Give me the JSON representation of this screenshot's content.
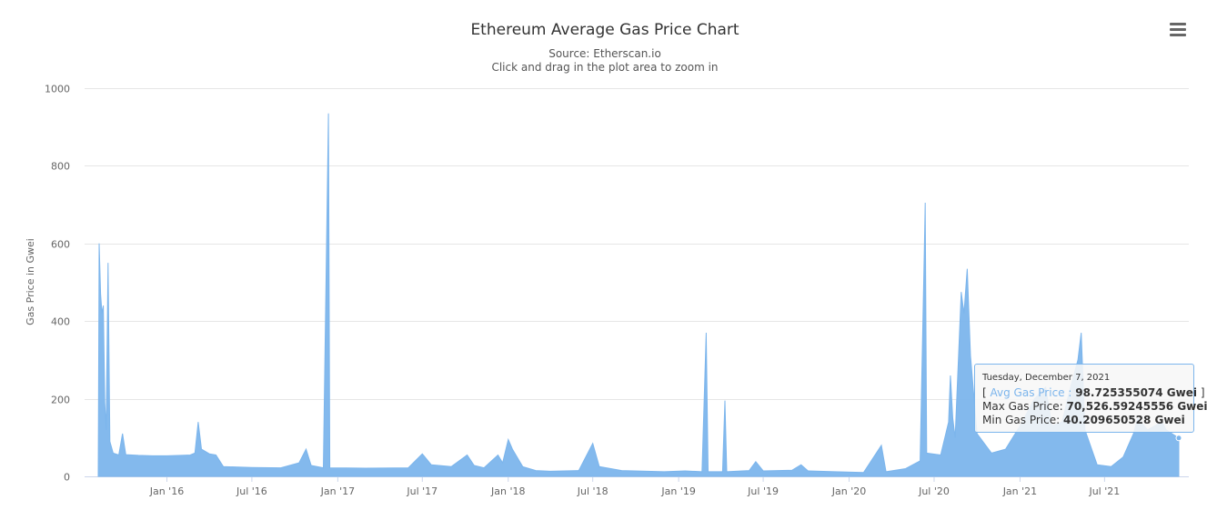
{
  "menu": {
    "icon": "hamburger-menu-icon"
  },
  "tooltip": {
    "date": "Tuesday, December 7, 2021",
    "open_bracket": "[",
    "close_bracket": "]",
    "series_label": "Avg Gas Price",
    "series_sep": " : ",
    "avg_value": "98.725355074 Gwei",
    "max_label": "Max Gas Price: ",
    "max_value": "70,526.59245556 Gwei",
    "min_label": "Min Gas Price: ",
    "min_value": "40.209650528 Gwei"
  },
  "colors": {
    "series": "#7cb5ec",
    "tooltip_border": "#7cb5ec",
    "grid": "#e6e6e6"
  },
  "chart_data": {
    "type": "area",
    "title": "Ethereum Average Gas Price Chart",
    "subtitle": "Source: Etherscan.io",
    "subtitle2": "Click and drag in the plot area to zoom in",
    "ylabel": "Gas Price in Gwei",
    "xlabel": "",
    "ylim": [
      0,
      1000
    ],
    "yticks": [
      0,
      200,
      400,
      600,
      800,
      1000
    ],
    "xlim": [
      "2015-08-07",
      "2021-12-07"
    ],
    "xticks": [
      {
        "date": "2016-01-01",
        "label": "Jan '16"
      },
      {
        "date": "2016-07-01",
        "label": "Jul '16"
      },
      {
        "date": "2017-01-01",
        "label": "Jan '17"
      },
      {
        "date": "2017-07-01",
        "label": "Jul '17"
      },
      {
        "date": "2018-01-01",
        "label": "Jan '18"
      },
      {
        "date": "2018-07-01",
        "label": "Jul '18"
      },
      {
        "date": "2019-01-01",
        "label": "Jan '19"
      },
      {
        "date": "2019-07-01",
        "label": "Jul '19"
      },
      {
        "date": "2020-01-01",
        "label": "Jan '20"
      },
      {
        "date": "2020-07-01",
        "label": "Jul '20"
      },
      {
        "date": "2021-01-01",
        "label": "Jan '21"
      },
      {
        "date": "2021-07-01",
        "label": "Jul '21"
      }
    ],
    "series": [
      {
        "name": "Avg Gas Price",
        "unit": "Gwei",
        "points": [
          [
            "2015-08-07",
            0
          ],
          [
            "2015-08-09",
            600
          ],
          [
            "2015-08-12",
            470
          ],
          [
            "2015-08-15",
            420
          ],
          [
            "2015-08-18",
            440
          ],
          [
            "2015-08-21",
            190
          ],
          [
            "2015-08-24",
            120
          ],
          [
            "2015-08-28",
            550
          ],
          [
            "2015-09-01",
            90
          ],
          [
            "2015-09-08",
            60
          ],
          [
            "2015-09-20",
            55
          ],
          [
            "2015-09-28",
            110
          ],
          [
            "2015-10-05",
            56
          ],
          [
            "2015-11-01",
            54
          ],
          [
            "2015-12-01",
            53
          ],
          [
            "2016-01-01",
            53
          ],
          [
            "2016-02-01",
            54
          ],
          [
            "2016-02-20",
            55
          ],
          [
            "2016-03-01",
            60
          ],
          [
            "2016-03-08",
            140
          ],
          [
            "2016-03-15",
            70
          ],
          [
            "2016-04-01",
            58
          ],
          [
            "2016-04-15",
            55
          ],
          [
            "2016-05-01",
            25
          ],
          [
            "2016-07-01",
            23
          ],
          [
            "2016-09-01",
            22
          ],
          [
            "2016-10-10",
            35
          ],
          [
            "2016-10-25",
            70
          ],
          [
            "2016-11-05",
            28
          ],
          [
            "2016-12-01",
            22
          ],
          [
            "2016-12-12",
            935
          ],
          [
            "2016-12-15",
            22
          ],
          [
            "2017-03-01",
            21
          ],
          [
            "2017-06-01",
            22
          ],
          [
            "2017-07-01",
            58
          ],
          [
            "2017-07-20",
            30
          ],
          [
            "2017-09-01",
            25
          ],
          [
            "2017-10-05",
            55
          ],
          [
            "2017-10-20",
            28
          ],
          [
            "2017-11-10",
            22
          ],
          [
            "2017-12-10",
            55
          ],
          [
            "2017-12-20",
            35
          ],
          [
            "2018-01-01",
            95
          ],
          [
            "2018-01-10",
            70
          ],
          [
            "2018-02-01",
            25
          ],
          [
            "2018-03-01",
            15
          ],
          [
            "2018-04-01",
            13
          ],
          [
            "2018-06-01",
            15
          ],
          [
            "2018-07-01",
            85
          ],
          [
            "2018-07-15",
            25
          ],
          [
            "2018-09-01",
            15
          ],
          [
            "2018-12-01",
            12
          ],
          [
            "2019-01-15",
            14
          ],
          [
            "2019-02-20",
            12
          ],
          [
            "2019-03-01",
            370
          ],
          [
            "2019-03-05",
            12
          ],
          [
            "2019-04-05",
            12
          ],
          [
            "2019-04-10",
            195
          ],
          [
            "2019-04-14",
            12
          ],
          [
            "2019-06-01",
            15
          ],
          [
            "2019-06-15",
            38
          ],
          [
            "2019-07-01",
            14
          ],
          [
            "2019-09-01",
            16
          ],
          [
            "2019-09-20",
            30
          ],
          [
            "2019-10-05",
            14
          ],
          [
            "2019-12-01",
            12
          ],
          [
            "2020-02-01",
            10
          ],
          [
            "2020-03-10",
            80
          ],
          [
            "2020-03-20",
            12
          ],
          [
            "2020-05-01",
            20
          ],
          [
            "2020-06-01",
            40
          ],
          [
            "2020-06-10",
            580
          ],
          [
            "2020-06-12",
            705
          ],
          [
            "2020-06-15",
            60
          ],
          [
            "2020-07-15",
            55
          ],
          [
            "2020-08-01",
            140
          ],
          [
            "2020-08-05",
            260
          ],
          [
            "2020-08-10",
            150
          ],
          [
            "2020-08-15",
            100
          ],
          [
            "2020-08-28",
            475
          ],
          [
            "2020-09-03",
            420
          ],
          [
            "2020-09-10",
            535
          ],
          [
            "2020-09-17",
            310
          ],
          [
            "2020-10-01",
            110
          ],
          [
            "2020-11-01",
            60
          ],
          [
            "2020-12-01",
            70
          ],
          [
            "2021-01-01",
            130
          ],
          [
            "2021-02-01",
            200
          ],
          [
            "2021-02-25",
            230
          ],
          [
            "2021-03-10",
            130
          ],
          [
            "2021-04-01",
            140
          ],
          [
            "2021-04-15",
            210
          ],
          [
            "2021-05-05",
            300
          ],
          [
            "2021-05-12",
            370
          ],
          [
            "2021-05-20",
            120
          ],
          [
            "2021-06-15",
            30
          ],
          [
            "2021-07-15",
            25
          ],
          [
            "2021-08-10",
            50
          ],
          [
            "2021-09-01",
            110
          ],
          [
            "2021-09-10",
            150
          ],
          [
            "2021-10-01",
            120
          ],
          [
            "2021-11-01",
            140
          ],
          [
            "2021-11-10",
            120
          ],
          [
            "2021-12-07",
            98.7
          ]
        ]
      }
    ],
    "highlight": {
      "date": "2021-12-07",
      "value": 98.725355074
    }
  }
}
